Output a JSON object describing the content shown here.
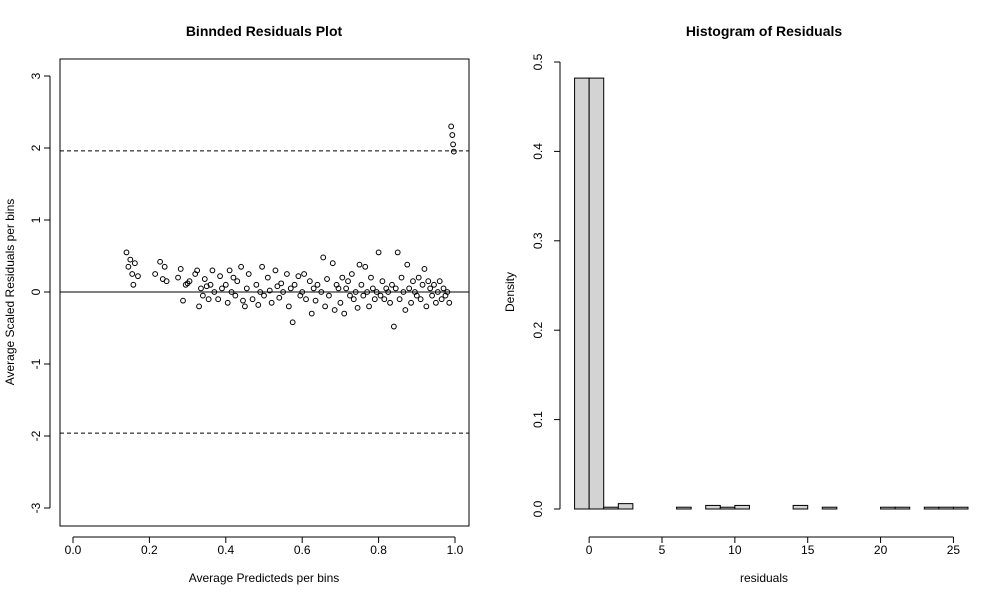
{
  "chart_data": [
    {
      "type": "scatter",
      "title": "Binnded Residuals Plot",
      "xlabel": "Average Predicteds per bins",
      "ylabel": "Average Scaled Residuals per bins",
      "xlim": [
        0.0,
        1.0
      ],
      "ylim": [
        -3,
        3
      ],
      "xticks": [
        "0.0",
        "0.2",
        "0.4",
        "0.6",
        "0.8",
        "1.0"
      ],
      "yticks": [
        "-3",
        "-2",
        "-1",
        "0",
        "1",
        "2",
        "3"
      ],
      "reference_lines": {
        "solid": [
          0
        ],
        "dashed": [
          1.96,
          -1.96
        ]
      },
      "x": [
        0.14,
        0.145,
        0.15,
        0.155,
        0.158,
        0.162,
        0.17,
        0.215,
        0.228,
        0.235,
        0.24,
        0.245,
        0.275,
        0.282,
        0.288,
        0.295,
        0.3,
        0.305,
        0.32,
        0.325,
        0.33,
        0.335,
        0.34,
        0.345,
        0.35,
        0.355,
        0.36,
        0.365,
        0.37,
        0.38,
        0.385,
        0.39,
        0.4,
        0.405,
        0.41,
        0.415,
        0.42,
        0.425,
        0.43,
        0.44,
        0.445,
        0.45,
        0.455,
        0.46,
        0.47,
        0.48,
        0.485,
        0.49,
        0.495,
        0.5,
        0.51,
        0.515,
        0.52,
        0.53,
        0.535,
        0.54,
        0.545,
        0.55,
        0.56,
        0.565,
        0.57,
        0.575,
        0.58,
        0.59,
        0.595,
        0.6,
        0.605,
        0.61,
        0.62,
        0.625,
        0.63,
        0.635,
        0.64,
        0.65,
        0.655,
        0.66,
        0.665,
        0.67,
        0.68,
        0.685,
        0.69,
        0.695,
        0.7,
        0.705,
        0.71,
        0.715,
        0.72,
        0.725,
        0.73,
        0.735,
        0.74,
        0.745,
        0.75,
        0.755,
        0.76,
        0.765,
        0.77,
        0.775,
        0.78,
        0.785,
        0.79,
        0.795,
        0.8,
        0.805,
        0.81,
        0.815,
        0.82,
        0.825,
        0.83,
        0.835,
        0.84,
        0.845,
        0.85,
        0.855,
        0.86,
        0.865,
        0.87,
        0.875,
        0.88,
        0.885,
        0.89,
        0.895,
        0.9,
        0.905,
        0.91,
        0.915,
        0.92,
        0.925,
        0.93,
        0.935,
        0.94,
        0.945,
        0.95,
        0.955,
        0.96,
        0.965,
        0.97,
        0.975,
        0.98,
        0.985,
        0.99,
        0.993,
        0.995,
        0.997
      ],
      "y": [
        0.55,
        0.35,
        0.45,
        0.25,
        0.1,
        0.4,
        0.22,
        0.25,
        0.42,
        0.18,
        0.35,
        0.15,
        0.2,
        0.32,
        -0.12,
        0.1,
        0.12,
        0.15,
        0.25,
        0.3,
        -0.2,
        0.05,
        -0.05,
        0.18,
        0.08,
        -0.1,
        0.1,
        0.3,
        0.0,
        -0.1,
        0.22,
        0.05,
        0.1,
        -0.15,
        0.3,
        0.0,
        0.2,
        -0.05,
        0.15,
        0.35,
        -0.12,
        -0.2,
        0.05,
        0.25,
        -0.1,
        0.1,
        -0.18,
        0.0,
        0.35,
        -0.05,
        0.2,
        0.02,
        -0.15,
        0.3,
        0.08,
        -0.08,
        0.12,
        0.0,
        0.25,
        -0.2,
        0.05,
        -0.42,
        0.1,
        0.22,
        -0.05,
        0.0,
        0.25,
        -0.1,
        0.15,
        -0.3,
        0.05,
        -0.12,
        0.1,
        0.0,
        0.48,
        -0.2,
        0.18,
        -0.05,
        0.4,
        -0.25,
        0.1,
        0.05,
        -0.15,
        0.2,
        -0.3,
        0.05,
        0.15,
        -0.05,
        0.25,
        -0.1,
        0.0,
        -0.22,
        0.38,
        0.1,
        -0.05,
        0.35,
        0.0,
        -0.2,
        0.2,
        0.05,
        -0.1,
        0.0,
        0.55,
        -0.05,
        0.15,
        -0.1,
        0.05,
        0.0,
        -0.15,
        0.1,
        -0.48,
        0.05,
        0.55,
        -0.1,
        0.2,
        0.0,
        -0.25,
        0.38,
        0.05,
        -0.15,
        0.15,
        0.0,
        -0.05,
        0.2,
        -0.1,
        0.1,
        0.32,
        -0.2,
        0.15,
        0.05,
        -0.05,
        0.1,
        -0.15,
        0.0,
        0.15,
        -0.1,
        0.05,
        -0.05,
        0.0,
        -0.15,
        2.3,
        2.18,
        2.05,
        1.95
      ]
    },
    {
      "type": "bar",
      "title": "Histogram of Residuals",
      "xlabel": "residuals",
      "ylabel": "Density",
      "xlim": [
        -2,
        26
      ],
      "ylim": [
        0,
        0.5
      ],
      "xticks": [
        "0",
        "5",
        "10",
        "15",
        "20",
        "25"
      ],
      "yticks": [
        "0.0",
        "0.1",
        "0.2",
        "0.3",
        "0.4",
        "0.5"
      ],
      "bin_width": 1,
      "bin_starts": [
        -1,
        0,
        1,
        2,
        3,
        4,
        5,
        6,
        7,
        8,
        9,
        10,
        11,
        12,
        13,
        14,
        15,
        16,
        17,
        18,
        19,
        20,
        21,
        22,
        23,
        24,
        25
      ],
      "values": [
        0.482,
        0.482,
        0.002,
        0.006,
        0.0,
        0.0,
        0.0,
        0.002,
        0.0,
        0.004,
        0.002,
        0.004,
        0.0,
        0.0,
        0.0,
        0.004,
        0.0,
        0.002,
        0.0,
        0.0,
        0.0,
        0.002,
        0.002,
        0.0,
        0.002,
        0.002,
        0.002
      ]
    }
  ]
}
